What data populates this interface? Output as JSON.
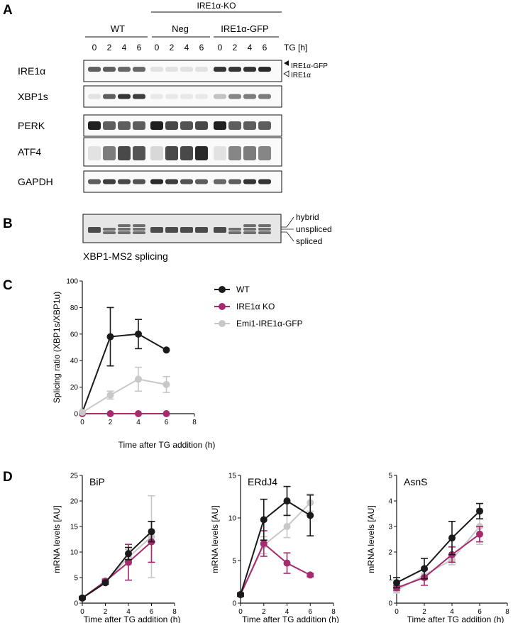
{
  "panel_a": {
    "letter": "A",
    "ko_header": "IRE1α-KO",
    "groups": [
      "WT",
      "Neg",
      "IRE1α-GFP"
    ],
    "timepoints": [
      "0",
      "2",
      "4",
      "6"
    ],
    "tg_label": "TG [h]",
    "blots": [
      {
        "label": "IRE1α",
        "band_intensity": [
          0.7,
          0.7,
          0.65,
          0.65,
          0.05,
          0.05,
          0.05,
          0.05,
          0.9,
          0.9,
          0.9,
          0.95
        ]
      },
      {
        "label": "XBP1s",
        "band_intensity": [
          0.05,
          0.7,
          0.9,
          0.85,
          0.02,
          0.02,
          0.02,
          0.02,
          0.2,
          0.5,
          0.55,
          0.55
        ]
      },
      {
        "label": "PERK",
        "band_intensity": [
          1.0,
          0.7,
          0.7,
          0.7,
          1.0,
          0.8,
          0.75,
          0.8,
          1.0,
          0.7,
          0.7,
          0.7
        ]
      },
      {
        "label": "ATF4",
        "band_intensity": [
          0.05,
          0.55,
          0.8,
          0.75,
          0.1,
          0.8,
          0.8,
          0.95,
          0.05,
          0.5,
          0.55,
          0.5
        ]
      },
      {
        "label": "GAPDH",
        "band_intensity": [
          0.7,
          0.85,
          0.8,
          0.75,
          0.95,
          0.85,
          0.75,
          0.7,
          0.65,
          0.7,
          0.9,
          0.9
        ]
      }
    ],
    "arrow_labels": [
      "IRE1α-GFP",
      "IRE1α"
    ]
  },
  "panel_b": {
    "letter": "B",
    "caption": "XBP1-MS2 splicing",
    "band_labels": [
      "hybrid",
      "unspliced",
      "spliced"
    ]
  },
  "chart_data": [
    {
      "panel": "C",
      "type": "line",
      "xlabel": "Time after TG addition (h)",
      "ylabel": "Splicing ratio (XBP1s/XBP1u)",
      "xlim": [
        0,
        8
      ],
      "ylim": [
        0,
        100
      ],
      "xticks": [
        0,
        2,
        4,
        6,
        8
      ],
      "yticks": [
        0,
        20,
        40,
        60,
        80,
        100
      ],
      "legend_position": "top-right",
      "series": [
        {
          "name": "WT",
          "color": "#1a1a1a",
          "x": [
            0,
            2,
            4,
            6
          ],
          "y": [
            1,
            58,
            60,
            48
          ],
          "err": [
            0,
            22,
            11,
            0
          ]
        },
        {
          "name": "IRE1α KO",
          "color": "#a52a6e",
          "x": [
            0,
            2,
            4,
            6
          ],
          "y": [
            0,
            0,
            0,
            0
          ],
          "err": [
            0,
            0,
            0,
            0
          ]
        },
        {
          "name": "Emi1-IRE1α-GFP",
          "color": "#c8c8c8",
          "x": [
            0,
            2,
            4,
            6
          ],
          "y": [
            1,
            14,
            26,
            22
          ],
          "err": [
            0,
            3,
            9,
            6
          ]
        }
      ]
    },
    {
      "panel": "D",
      "type": "line",
      "title": "BiP",
      "xlabel": "Time after TG addition (h)",
      "ylabel": "mRNA levels [AU]",
      "xlim": [
        0,
        8
      ],
      "ylim": [
        0,
        25
      ],
      "xticks": [
        0,
        2,
        4,
        6,
        8
      ],
      "yticks": [
        0,
        5,
        10,
        15,
        20,
        25
      ],
      "series": [
        {
          "color": "#c8c8c8",
          "x": [
            0,
            2,
            4,
            6
          ],
          "y": [
            1,
            4,
            9,
            13
          ],
          "err": [
            0.3,
            0.3,
            1.5,
            8
          ]
        },
        {
          "color": "#a52a6e",
          "x": [
            0,
            2,
            4,
            6
          ],
          "y": [
            1,
            4.3,
            8,
            12
          ],
          "err": [
            0.3,
            0.4,
            3.5,
            4
          ]
        },
        {
          "color": "#1a1a1a",
          "x": [
            0,
            2,
            4,
            6
          ],
          "y": [
            1,
            4,
            9.7,
            14
          ],
          "err": [
            0.2,
            0.3,
            1.2,
            2
          ]
        }
      ]
    },
    {
      "panel": "D",
      "type": "line",
      "title": "ERdJ4",
      "xlabel": "Time after TG addition (h)",
      "ylabel": "mRNA levels [AU]",
      "xlim": [
        0,
        8
      ],
      "ylim": [
        0,
        15
      ],
      "xticks": [
        0,
        2,
        4,
        6,
        8
      ],
      "yticks": [
        0,
        5,
        10,
        15
      ],
      "series": [
        {
          "color": "#c8c8c8",
          "x": [
            0,
            2,
            4,
            6
          ],
          "y": [
            1,
            6.8,
            9,
            11.8
          ],
          "err": [
            0.2,
            1,
            1.3,
            1
          ]
        },
        {
          "color": "#a52a6e",
          "x": [
            0,
            2,
            4,
            6
          ],
          "y": [
            1,
            7,
            4.7,
            3.3
          ],
          "err": [
            0.2,
            1.5,
            1.2,
            0.2
          ]
        },
        {
          "color": "#1a1a1a",
          "x": [
            0,
            2,
            4,
            6
          ],
          "y": [
            1,
            9.8,
            12,
            10.3
          ],
          "err": [
            0.2,
            2.4,
            1.7,
            2.4
          ]
        }
      ]
    },
    {
      "panel": "D",
      "type": "line",
      "title": "AsnS",
      "xlabel": "Time after TG addition (h)",
      "ylabel": "mRNA levels [AU]",
      "xlim": [
        0,
        8
      ],
      "ylim": [
        0,
        5
      ],
      "xticks": [
        0,
        2,
        4,
        6,
        8
      ],
      "yticks": [
        0,
        1,
        2,
        3,
        4,
        5
      ],
      "series": [
        {
          "color": "#c8c8c8",
          "x": [
            0,
            2,
            4,
            6
          ],
          "y": [
            0.5,
            1.1,
            1.7,
            3
          ],
          "err": [
            0.1,
            0.2,
            0.2,
            0.7
          ]
        },
        {
          "color": "#a52a6e",
          "x": [
            0,
            2,
            4,
            6
          ],
          "y": [
            0.6,
            1,
            1.9,
            2.7
          ],
          "err": [
            0.1,
            0.3,
            0.3,
            0.3
          ]
        },
        {
          "color": "#1a1a1a",
          "x": [
            0,
            2,
            4,
            6
          ],
          "y": [
            0.8,
            1.35,
            2.55,
            3.6
          ],
          "err": [
            0.2,
            0.4,
            0.65,
            0.3
          ]
        }
      ]
    }
  ]
}
